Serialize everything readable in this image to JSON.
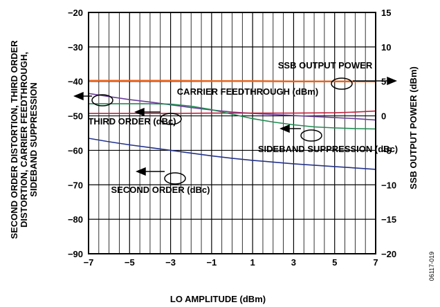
{
  "chart_data": {
    "type": "line",
    "xlabel": "LO AMPLITUDE (dBm)",
    "ylabel_left_lines": [
      "SECOND ORDER DISTORTION, THIRD ORDER",
      "DISTORTION, CARRIER FEEDTHROUGH,",
      "SIDEBAND SUPPRESSION"
    ],
    "ylabel_right": "SSB OUTPUT POWER (dBm)",
    "xlim": [
      -7,
      7
    ],
    "ylim_left": [
      -90,
      -20
    ],
    "ylim_right": [
      -20,
      15
    ],
    "x_ticks": [
      "−7",
      "−5",
      "−3",
      "−1",
      "1",
      "3",
      "5",
      "7"
    ],
    "y_ticks_left": [
      "−90",
      "−80",
      "−70",
      "−60",
      "−50",
      "−40",
      "−30",
      "−20"
    ],
    "y_ticks_right": [
      "−20",
      "−15",
      "−10",
      "−5",
      "0",
      "5",
      "10",
      "15"
    ],
    "grid": true,
    "figure_id": "06117-019",
    "series": [
      {
        "key": "ssb",
        "axis": "right",
        "color": "#e8641e",
        "x": [
          -7,
          -5,
          -3,
          -1,
          1,
          3,
          5,
          7
        ],
        "values": [
          5.1,
          5.1,
          5.1,
          5.05,
          5.05,
          5.0,
          5.0,
          5.0
        ]
      },
      {
        "key": "carrier",
        "axis": "left",
        "color": "#6a3d9a",
        "x": [
          -7,
          -6,
          -5,
          -4,
          -3,
          -2,
          -1,
          0,
          1,
          2,
          3,
          4,
          5,
          6,
          7
        ],
        "values": [
          -43.5,
          -44.4,
          -45.3,
          -46.0,
          -46.8,
          -47.6,
          -48.3,
          -48.9,
          -49.3,
          -49.6,
          -49.9,
          -50.2,
          -50.5,
          -50.8,
          -51.2
        ]
      },
      {
        "key": "third",
        "axis": "left",
        "color": "#c41e3a",
        "x": [
          -7,
          -5,
          -3,
          -1,
          1,
          3,
          5,
          6,
          7
        ],
        "values": [
          -49.3,
          -49.3,
          -49.3,
          -49.2,
          -49.2,
          -49.2,
          -49.1,
          -48.9,
          -48.6
        ]
      },
      {
        "key": "sideband",
        "axis": "left",
        "color": "#1e8a50",
        "x": [
          -7,
          -6,
          -5,
          -4,
          -3,
          -2,
          -1,
          0,
          1,
          2,
          3,
          4,
          5,
          6,
          7
        ],
        "values": [
          -46.5,
          -46.5,
          -46.5,
          -46.5,
          -46.6,
          -47.2,
          -48.2,
          -49.5,
          -50.8,
          -51.8,
          -52.6,
          -53.2,
          -53.5,
          -53.7,
          -53.8
        ]
      },
      {
        "key": "second",
        "axis": "left",
        "color": "#23328a",
        "x": [
          -7,
          -6,
          -5,
          -4,
          -3,
          -2,
          -1,
          0,
          1,
          2,
          3,
          4,
          5,
          6,
          7
        ],
        "values": [
          -56.5,
          -57.5,
          -58.4,
          -59.2,
          -60.0,
          -60.8,
          -61.6,
          -62.3,
          -62.9,
          -63.4,
          -63.9,
          -64.3,
          -64.7,
          -65.1,
          -65.5
        ]
      }
    ],
    "annotations": {
      "ssb": "SSB OUTPUT POWER",
      "carrier": "CARRIER FEEDTHROUGH (dBm)",
      "third": "THIRD ORDER (dBc)",
      "sideband": "SIDEBAND SUPPRESSION (dBc)",
      "second": "SECOND ORDER (dBc)"
    }
  }
}
